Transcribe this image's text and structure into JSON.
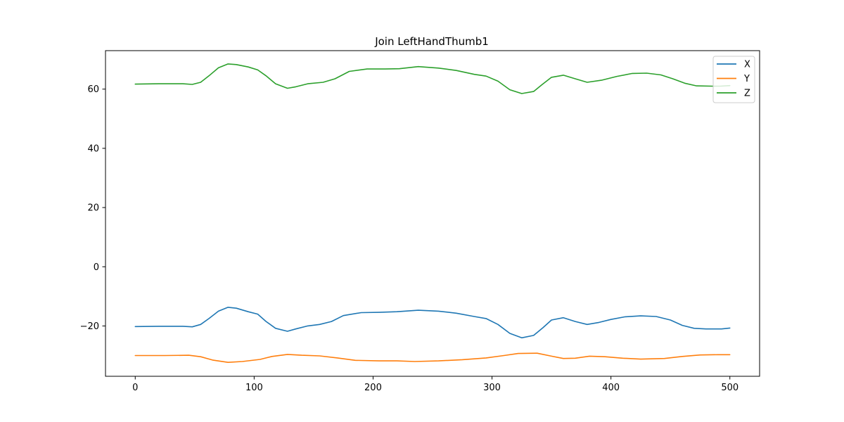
{
  "chart_data": {
    "type": "line",
    "title": "Join LeftHandThumb1",
    "xlabel": "",
    "ylabel": "",
    "xlim": [
      -25,
      525
    ],
    "ylim": [
      -37,
      73
    ],
    "xticks": [
      0,
      100,
      200,
      300,
      400,
      500
    ],
    "yticks": [
      -20,
      0,
      20,
      40,
      60
    ],
    "grid": false,
    "legend": "top-right",
    "series": [
      {
        "name": "X",
        "color": "#1f77b4",
        "points": [
          [
            0,
            -20.2
          ],
          [
            20,
            -20.1
          ],
          [
            40,
            -20.1
          ],
          [
            48,
            -20.3
          ],
          [
            55,
            -19.5
          ],
          [
            62,
            -17.5
          ],
          [
            70,
            -15.0
          ],
          [
            78,
            -13.7
          ],
          [
            85,
            -14.0
          ],
          [
            95,
            -15.2
          ],
          [
            103,
            -16.0
          ],
          [
            110,
            -18.5
          ],
          [
            118,
            -20.8
          ],
          [
            128,
            -21.8
          ],
          [
            135,
            -21.0
          ],
          [
            145,
            -20.0
          ],
          [
            155,
            -19.5
          ],
          [
            165,
            -18.5
          ],
          [
            175,
            -16.5
          ],
          [
            190,
            -15.5
          ],
          [
            205,
            -15.4
          ],
          [
            220,
            -15.2
          ],
          [
            238,
            -14.7
          ],
          [
            255,
            -15.0
          ],
          [
            270,
            -15.7
          ],
          [
            285,
            -16.8
          ],
          [
            295,
            -17.5
          ],
          [
            305,
            -19.5
          ],
          [
            315,
            -22.5
          ],
          [
            325,
            -24.0
          ],
          [
            335,
            -23.2
          ],
          [
            343,
            -20.5
          ],
          [
            350,
            -18.0
          ],
          [
            360,
            -17.2
          ],
          [
            370,
            -18.5
          ],
          [
            380,
            -19.5
          ],
          [
            390,
            -18.8
          ],
          [
            400,
            -17.8
          ],
          [
            412,
            -16.9
          ],
          [
            425,
            -16.6
          ],
          [
            438,
            -16.8
          ],
          [
            450,
            -18.0
          ],
          [
            460,
            -19.8
          ],
          [
            470,
            -20.8
          ],
          [
            480,
            -21.0
          ],
          [
            493,
            -21.0
          ],
          [
            500,
            -20.7
          ]
        ]
      },
      {
        "name": "Y",
        "color": "#ff7f0e",
        "points": [
          [
            0,
            -30.0
          ],
          [
            25,
            -30.0
          ],
          [
            45,
            -29.9
          ],
          [
            55,
            -30.4
          ],
          [
            65,
            -31.5
          ],
          [
            78,
            -32.3
          ],
          [
            90,
            -32.0
          ],
          [
            105,
            -31.3
          ],
          [
            115,
            -30.3
          ],
          [
            128,
            -29.6
          ],
          [
            140,
            -29.9
          ],
          [
            155,
            -30.1
          ],
          [
            170,
            -30.8
          ],
          [
            185,
            -31.6
          ],
          [
            205,
            -31.8
          ],
          [
            220,
            -31.8
          ],
          [
            235,
            -32.0
          ],
          [
            255,
            -31.8
          ],
          [
            275,
            -31.4
          ],
          [
            295,
            -30.8
          ],
          [
            310,
            -30.0
          ],
          [
            322,
            -29.3
          ],
          [
            338,
            -29.2
          ],
          [
            350,
            -30.2
          ],
          [
            360,
            -31.0
          ],
          [
            370,
            -30.9
          ],
          [
            382,
            -30.2
          ],
          [
            395,
            -30.4
          ],
          [
            410,
            -30.9
          ],
          [
            425,
            -31.2
          ],
          [
            445,
            -31.0
          ],
          [
            460,
            -30.3
          ],
          [
            475,
            -29.8
          ],
          [
            490,
            -29.7
          ],
          [
            500,
            -29.7
          ]
        ]
      },
      {
        "name": "Z",
        "color": "#2ca02c",
        "points": [
          [
            0,
            61.7
          ],
          [
            20,
            61.8
          ],
          [
            40,
            61.8
          ],
          [
            48,
            61.6
          ],
          [
            55,
            62.3
          ],
          [
            62,
            64.5
          ],
          [
            70,
            67.2
          ],
          [
            78,
            68.5
          ],
          [
            85,
            68.3
          ],
          [
            95,
            67.5
          ],
          [
            103,
            66.5
          ],
          [
            110,
            64.5
          ],
          [
            118,
            61.8
          ],
          [
            128,
            60.3
          ],
          [
            135,
            60.8
          ],
          [
            145,
            61.8
          ],
          [
            158,
            62.3
          ],
          [
            168,
            63.5
          ],
          [
            180,
            66.0
          ],
          [
            195,
            66.8
          ],
          [
            210,
            66.8
          ],
          [
            222,
            66.9
          ],
          [
            238,
            67.6
          ],
          [
            255,
            67.1
          ],
          [
            270,
            66.3
          ],
          [
            285,
            65.0
          ],
          [
            295,
            64.4
          ],
          [
            305,
            62.7
          ],
          [
            315,
            59.8
          ],
          [
            325,
            58.5
          ],
          [
            335,
            59.2
          ],
          [
            342,
            61.5
          ],
          [
            350,
            64.0
          ],
          [
            360,
            64.7
          ],
          [
            370,
            63.5
          ],
          [
            380,
            62.3
          ],
          [
            392,
            63.0
          ],
          [
            405,
            64.3
          ],
          [
            418,
            65.3
          ],
          [
            430,
            65.4
          ],
          [
            442,
            64.8
          ],
          [
            452,
            63.5
          ],
          [
            462,
            62.0
          ],
          [
            472,
            61.1
          ],
          [
            485,
            61.0
          ],
          [
            492,
            61.0
          ],
          [
            500,
            61.2
          ]
        ]
      }
    ]
  }
}
